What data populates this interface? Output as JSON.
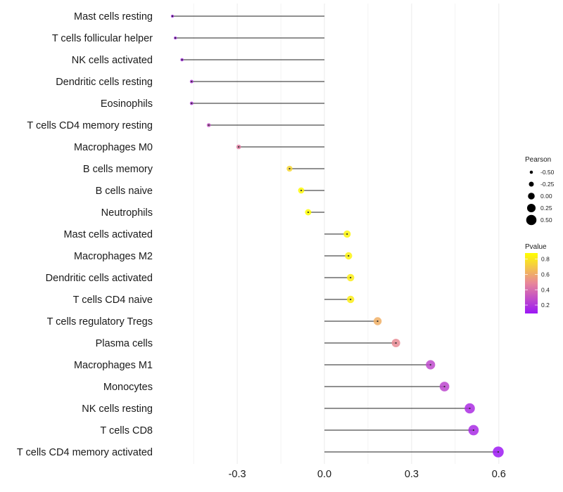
{
  "chart_data": {
    "type": "lollipop",
    "title": "",
    "xlabel": "",
    "ylabel": "",
    "xlim": [
      -0.56,
      0.64
    ],
    "x_ticks": [
      -0.3,
      0.0,
      0.3,
      0.6
    ],
    "x_tick_labels": [
      "-0.3",
      "0.0",
      "0.3",
      "0.6"
    ],
    "grid": true,
    "baseline": 0,
    "categories": [
      "Mast cells resting",
      "T cells follicular helper",
      "NK cells activated",
      "Dendritic cells resting",
      "Eosinophils",
      "T cells CD4 memory resting",
      "Macrophages M0",
      "B cells memory",
      "B cells naive",
      "Neutrophils",
      "Mast cells activated",
      "Macrophages M2",
      "Dendritic cells activated",
      "T cells CD4 naive",
      "T cells regulatory  Tregs ",
      "Plasma cells",
      "Macrophages M1",
      "Monocytes",
      "NK cells resting",
      "T cells CD8",
      "T cells CD4 memory activated"
    ],
    "pearson": [
      -0.523,
      -0.513,
      -0.49,
      -0.457,
      -0.457,
      -0.398,
      -0.295,
      -0.12,
      -0.08,
      -0.056,
      0.078,
      0.083,
      0.09,
      0.09,
      0.183,
      0.246,
      0.365,
      0.413,
      0.5,
      0.513,
      0.598
    ],
    "pvalue": [
      0.12,
      0.13,
      0.15,
      0.2,
      0.2,
      0.3,
      0.45,
      0.75,
      0.86,
      0.88,
      0.85,
      0.84,
      0.82,
      0.82,
      0.62,
      0.5,
      0.27,
      0.26,
      0.17,
      0.16,
      0.1
    ],
    "legend": {
      "size": {
        "title": "Pearson",
        "values": [
          -0.5,
          -0.25,
          0.0,
          0.25,
          0.5
        ],
        "labels": [
          "-0.50",
          "-0.25",
          "0.00",
          "0.25",
          "0.50"
        ],
        "placement": "right"
      },
      "color": {
        "title": "Pvalue",
        "range": [
          0.09,
          0.88
        ],
        "ticks": [
          0.2,
          0.4,
          0.6,
          0.8
        ],
        "labels": [
          "0.2",
          "0.4",
          "0.6",
          "0.8"
        ],
        "low_color": "#9b17f5",
        "mid_color": "#e8869a",
        "high_color": "#ffff00",
        "placement": "right"
      }
    },
    "colors": {
      "segment": "#4d4d4d",
      "grid": "#ebebeb"
    }
  }
}
